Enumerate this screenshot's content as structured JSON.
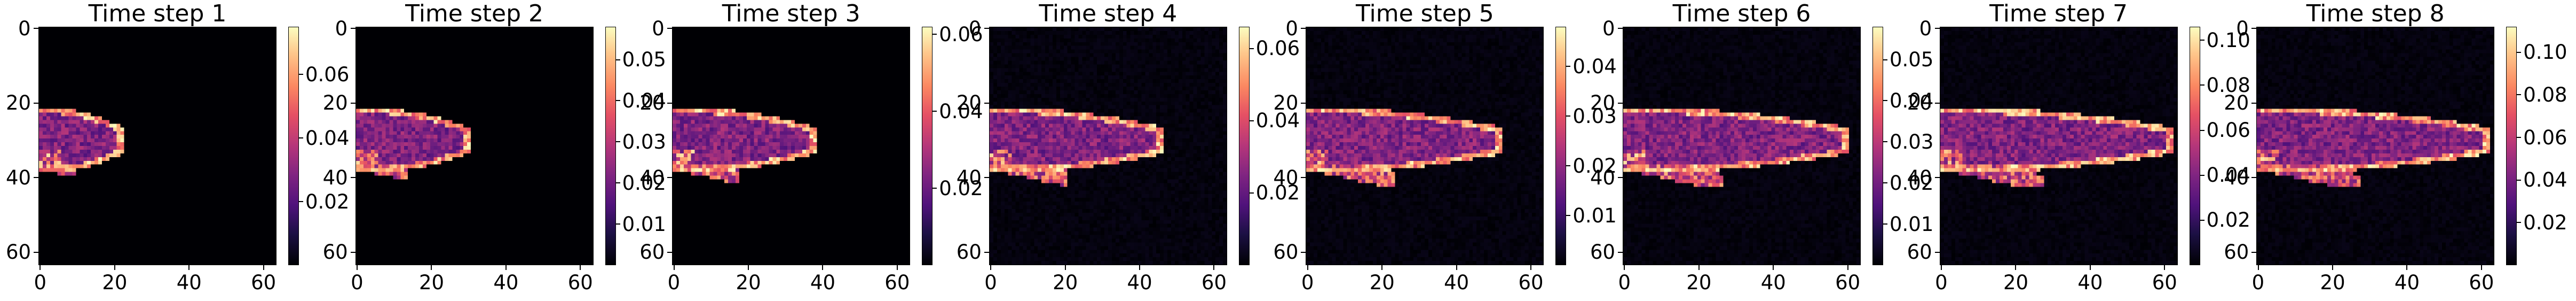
{
  "chart_data": [
    {
      "type": "heatmap",
      "title": "Time step 1",
      "x_ticks": [
        "0",
        "20",
        "40",
        "60"
      ],
      "y_ticks": [
        "0",
        "20",
        "40",
        "60"
      ],
      "xlim": [
        0,
        64
      ],
      "ylim": [
        64,
        0
      ],
      "colormap": "magma",
      "colorbar_range": [
        0,
        0.075
      ],
      "colorbar_ticks": [
        "0.02",
        "0.04",
        "0.06"
      ],
      "colorbar_tick_values": [
        0.02,
        0.04,
        0.06
      ],
      "plume_extent_x": 22
    },
    {
      "type": "heatmap",
      "title": "Time step 2",
      "x_ticks": [
        "0",
        "20",
        "40",
        "60"
      ],
      "y_ticks": [
        "0",
        "20",
        "40",
        "60"
      ],
      "xlim": [
        0,
        64
      ],
      "ylim": [
        64,
        0
      ],
      "colormap": "magma",
      "colorbar_range": [
        0,
        0.058
      ],
      "colorbar_ticks": [
        "0.01",
        "0.02",
        "0.03",
        "0.04",
        "0.05"
      ],
      "colorbar_tick_values": [
        0.01,
        0.02,
        0.03,
        0.04,
        0.05
      ],
      "plume_extent_x": 30
    },
    {
      "type": "heatmap",
      "title": "Time step 3",
      "x_ticks": [
        "0",
        "20",
        "40",
        "60"
      ],
      "y_ticks": [
        "0",
        "20",
        "40",
        "60"
      ],
      "xlim": [
        0,
        64
      ],
      "ylim": [
        64,
        0
      ],
      "colormap": "magma",
      "colorbar_range": [
        0,
        0.062
      ],
      "colorbar_ticks": [
        "0.02",
        "0.04",
        "0.06"
      ],
      "colorbar_tick_values": [
        0.02,
        0.04,
        0.06
      ],
      "plume_extent_x": 38
    },
    {
      "type": "heatmap",
      "title": "Time step 4",
      "x_ticks": [
        "0",
        "20",
        "40",
        "60"
      ],
      "y_ticks": [
        "0",
        "20",
        "40",
        "60"
      ],
      "xlim": [
        0,
        64
      ],
      "ylim": [
        64,
        0
      ],
      "colormap": "magma",
      "colorbar_range": [
        0,
        0.066
      ],
      "colorbar_ticks": [
        "0.02",
        "0.04",
        "0.06"
      ],
      "colorbar_tick_values": [
        0.02,
        0.04,
        0.06
      ],
      "plume_extent_x": 46
    },
    {
      "type": "heatmap",
      "title": "Time step 5",
      "x_ticks": [
        "0",
        "20",
        "40",
        "60"
      ],
      "y_ticks": [
        "0",
        "20",
        "40",
        "60"
      ],
      "xlim": [
        0,
        64
      ],
      "ylim": [
        64,
        0
      ],
      "colormap": "magma",
      "colorbar_range": [
        0,
        0.048
      ],
      "colorbar_ticks": [
        "0.01",
        "0.02",
        "0.03",
        "0.04"
      ],
      "colorbar_tick_values": [
        0.01,
        0.02,
        0.03,
        0.04
      ],
      "plume_extent_x": 52
    },
    {
      "type": "heatmap",
      "title": "Time step 6",
      "x_ticks": [
        "0",
        "20",
        "40",
        "60"
      ],
      "y_ticks": [
        "0",
        "20",
        "40",
        "60"
      ],
      "xlim": [
        0,
        64
      ],
      "ylim": [
        64,
        0
      ],
      "colormap": "magma",
      "colorbar_range": [
        0,
        0.058
      ],
      "colorbar_ticks": [
        "0.01",
        "0.02",
        "0.03",
        "0.04",
        "0.05"
      ],
      "colorbar_tick_values": [
        0.01,
        0.02,
        0.03,
        0.04,
        0.05
      ],
      "plume_extent_x": 60
    },
    {
      "type": "heatmap",
      "title": "Time step 7",
      "x_ticks": [
        "0",
        "20",
        "40",
        "60"
      ],
      "y_ticks": [
        "0",
        "20",
        "40",
        "60"
      ],
      "xlim": [
        0,
        64
      ],
      "ylim": [
        64,
        0
      ],
      "colormap": "magma",
      "colorbar_range": [
        0,
        0.106
      ],
      "colorbar_ticks": [
        "0.02",
        "0.04",
        "0.06",
        "0.08",
        "0.10"
      ],
      "colorbar_tick_values": [
        0.02,
        0.04,
        0.06,
        0.08,
        0.1
      ],
      "plume_extent_x": 62
    },
    {
      "type": "heatmap",
      "title": "Time step 8",
      "x_ticks": [
        "0",
        "20",
        "40",
        "60"
      ],
      "y_ticks": [
        "0",
        "20",
        "40",
        "60"
      ],
      "xlim": [
        0,
        64
      ],
      "ylim": [
        64,
        0
      ],
      "colormap": "magma",
      "colorbar_range": [
        0,
        0.112
      ],
      "colorbar_ticks": [
        "0.02",
        "0.04",
        "0.06",
        "0.08",
        "0.10"
      ],
      "colorbar_tick_values": [
        0.02,
        0.04,
        0.06,
        0.08,
        0.1
      ],
      "plume_extent_x": 62
    }
  ],
  "colors": {
    "background": "#ffffff",
    "colormap_low": "#000004",
    "colormap_mid": "#b73779",
    "colormap_high": "#fcfdbf"
  }
}
